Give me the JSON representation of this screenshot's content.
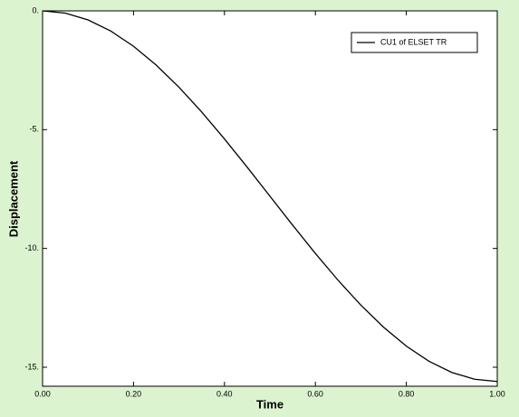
{
  "chart_data": {
    "type": "line",
    "x_label": "Time",
    "y_label": "Displacement",
    "x": [
      0,
      0.05,
      0.1,
      0.15,
      0.2,
      0.25,
      0.3,
      0.35,
      0.4,
      0.45,
      0.5,
      0.55,
      0.6,
      0.65,
      0.7,
      0.75,
      0.8,
      0.85,
      0.9,
      0.95,
      1.0
    ],
    "series": [
      {
        "name": "CU1 of ELSET TR",
        "color": "#000000",
        "values": [
          0,
          -0.096,
          -0.382,
          -0.85,
          -1.49,
          -2.285,
          -3.215,
          -4.259,
          -5.39,
          -6.58,
          -7.8,
          -9.02,
          -10.21,
          -11.341,
          -12.385,
          -13.315,
          -14.11,
          -14.75,
          -15.218,
          -15.504,
          -15.6
        ]
      }
    ],
    "xlim": [
      0,
      1
    ],
    "ylim": [
      -15.8,
      0
    ],
    "xticks": [
      {
        "value": 0,
        "label": "0.00"
      },
      {
        "value": 0.2,
        "label": "0.20"
      },
      {
        "value": 0.4,
        "label": "0.40"
      },
      {
        "value": 0.6,
        "label": "0.60"
      },
      {
        "value": 0.8,
        "label": "0.80"
      },
      {
        "value": 1.0,
        "label": "1.00"
      }
    ],
    "yticks": [
      {
        "value": 0,
        "label": "0."
      },
      {
        "value": -5,
        "label": "-5."
      },
      {
        "value": -10,
        "label": "-10."
      },
      {
        "value": -15,
        "label": "-15."
      }
    ],
    "legend": "upper right"
  }
}
